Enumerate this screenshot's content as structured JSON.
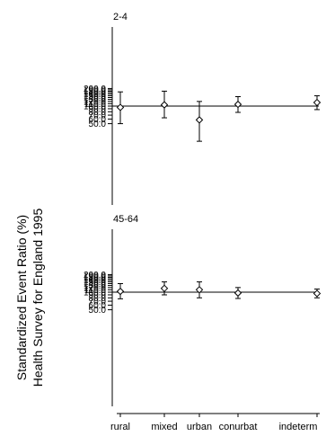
{
  "chart_data": {
    "type": "scatter",
    "subtype": "error-bar-dot-plot",
    "ylabel_lines": [
      "Standardized Event Ratio (%)",
      "Health Survey for England 1995"
    ],
    "categories": [
      "rural",
      "mixed",
      "urban",
      "conurbat",
      "indeterm"
    ],
    "reference_line": 100,
    "y_scale": "log",
    "yticks": [
      "200.0",
      "190.0",
      "180.0",
      "170.0",
      "160.0",
      "150.0",
      "140.0",
      "130.0",
      "120.0",
      "110.0",
      "100.0",
      "90.0",
      "80.0",
      "70.0",
      "60.0",
      "50.0"
    ],
    "panels": [
      {
        "title": "2-4",
        "points": [
          {
            "category": "rural",
            "value": 95,
            "low": 50,
            "high": 175
          },
          {
            "category": "mixed",
            "value": 105,
            "low": 63,
            "high": 180
          },
          {
            "category": "urban",
            "value": 58,
            "low": 25,
            "high": 120
          },
          {
            "category": "conurbat",
            "value": 107,
            "low": 78,
            "high": 145
          },
          {
            "category": "indeterm",
            "value": 115,
            "low": 87,
            "high": 150
          }
        ]
      },
      {
        "title": "45-64",
        "points": [
          {
            "category": "rural",
            "value": 103,
            "low": 77,
            "high": 140
          },
          {
            "category": "mixed",
            "value": 116,
            "low": 90,
            "high": 150
          },
          {
            "category": "urban",
            "value": 110,
            "low": 80,
            "high": 150
          },
          {
            "category": "conurbat",
            "value": 97,
            "low": 78,
            "high": 120
          },
          {
            "category": "indeterm",
            "value": 95,
            "low": 80,
            "high": 113
          }
        ]
      }
    ]
  }
}
